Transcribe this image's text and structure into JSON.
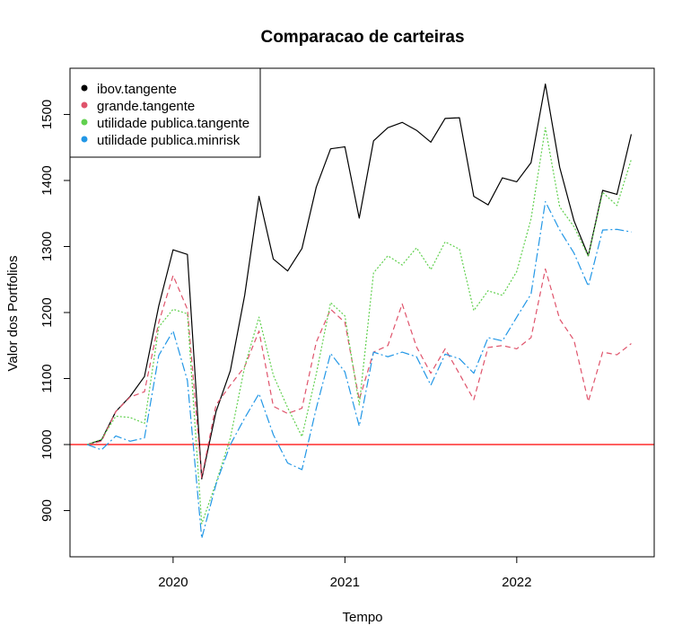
{
  "chart_data": {
    "type": "line",
    "title": "Comparacao de carteiras",
    "xlabel": "Tempo",
    "ylabel": "Valor dos Portfolios",
    "xlim": [
      2019.4,
      2022.8
    ],
    "ylim": [
      830,
      1570
    ],
    "x_ticks": [
      2020,
      2021,
      2022
    ],
    "y_ticks": [
      900,
      1000,
      1100,
      1200,
      1300,
      1400,
      1500
    ],
    "x_start": 2019.5,
    "x_step": 0.08333,
    "reference_line": {
      "y": 1000,
      "color": "#ff0000"
    },
    "legend_position": "top-left",
    "series": [
      {
        "name": "ibov.tangente",
        "color": "#000000",
        "dash": "solid",
        "values": [
          1000,
          1007,
          1050,
          1073,
          1103,
          1210,
          1295,
          1288,
          948,
          1050,
          1112,
          1226,
          1376,
          1281,
          1263,
          1297,
          1390,
          1448,
          1451,
          1343,
          1460,
          1480,
          1488,
          1476,
          1458,
          1494,
          1495,
          1376,
          1363,
          1404,
          1398,
          1427,
          1546,
          1420,
          1339,
          1286,
          1385,
          1379,
          1470
        ]
      },
      {
        "name": "grande.tangente",
        "color": "#df536b",
        "dash": "6,4",
        "values": [
          1000,
          1005,
          1050,
          1072,
          1080,
          1185,
          1256,
          1205,
          950,
          1060,
          1090,
          1118,
          1172,
          1058,
          1047,
          1055,
          1155,
          1205,
          1185,
          1068,
          1140,
          1150,
          1213,
          1148,
          1108,
          1145,
          1107,
          1068,
          1147,
          1150,
          1145,
          1162,
          1266,
          1190,
          1158,
          1065,
          1140,
          1136,
          1153
        ]
      },
      {
        "name": "utilidade publica.tangente",
        "color": "#61d04f",
        "dash": "2,2",
        "values": [
          1000,
          1008,
          1043,
          1041,
          1032,
          1178,
          1205,
          1198,
          880,
          942,
          1010,
          1118,
          1193,
          1105,
          1056,
          1012,
          1107,
          1215,
          1195,
          1060,
          1260,
          1286,
          1272,
          1298,
          1265,
          1307,
          1296,
          1203,
          1233,
          1226,
          1262,
          1342,
          1480,
          1360,
          1330,
          1285,
          1382,
          1362,
          1432
        ]
      },
      {
        "name": "utilidade publica.minrisk",
        "color": "#2297e6",
        "dash": "10,3,2,3",
        "values": [
          1000,
          992,
          1013,
          1005,
          1010,
          1135,
          1172,
          1097,
          858,
          940,
          1000,
          1040,
          1077,
          1015,
          972,
          962,
          1055,
          1138,
          1110,
          1028,
          1140,
          1133,
          1140,
          1133,
          1090,
          1137,
          1130,
          1108,
          1162,
          1157,
          1193,
          1228,
          1368,
          1325,
          1290,
          1240,
          1325,
          1326,
          1322
        ]
      }
    ]
  }
}
